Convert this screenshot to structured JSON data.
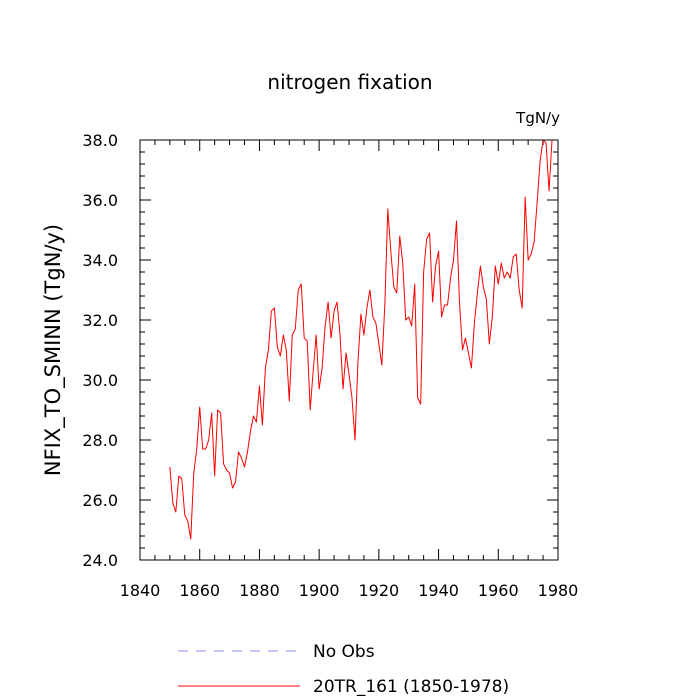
{
  "chart_data": {
    "type": "line",
    "title": "nitrogen fixation",
    "units_label": "TgN/y",
    "xlabel": "",
    "ylabel": "NFIX_TO_SMINN  (TgN/y)",
    "xlim": [
      1840,
      1980
    ],
    "ylim": [
      24.0,
      38.0
    ],
    "x_ticks": [
      1840,
      1860,
      1880,
      1900,
      1920,
      1940,
      1960,
      1980
    ],
    "x_tick_labels": [
      "1840",
      "1860",
      "1880",
      "1900",
      "1920",
      "1940",
      "1960",
      "1980"
    ],
    "y_ticks": [
      24.0,
      26.0,
      28.0,
      30.0,
      32.0,
      34.0,
      36.0,
      38.0
    ],
    "y_tick_labels": [
      "24.0",
      "26.0",
      "28.0",
      "30.0",
      "32.0",
      "34.0",
      "36.0",
      "38.0"
    ],
    "legend": {
      "position": "bottom",
      "entries": [
        {
          "label": "No Obs",
          "color": "#8c8cff",
          "style": "dashed"
        },
        {
          "label": "20TR_161 (1850-1978)",
          "color": "#ff0000",
          "style": "solid"
        }
      ]
    },
    "series": [
      {
        "name": "20TR_161 (1850-1978)",
        "color": "#ff0000",
        "x": [
          1850,
          1851,
          1852,
          1853,
          1854,
          1855,
          1856,
          1857,
          1858,
          1859,
          1860,
          1861,
          1862,
          1863,
          1864,
          1865,
          1866,
          1867,
          1868,
          1869,
          1870,
          1871,
          1872,
          1873,
          1874,
          1875,
          1876,
          1877,
          1878,
          1879,
          1880,
          1881,
          1882,
          1883,
          1884,
          1885,
          1886,
          1887,
          1888,
          1889,
          1890,
          1891,
          1892,
          1893,
          1894,
          1895,
          1896,
          1897,
          1898,
          1899,
          1900,
          1901,
          1902,
          1903,
          1904,
          1905,
          1906,
          1907,
          1908,
          1909,
          1910,
          1911,
          1912,
          1913,
          1914,
          1915,
          1916,
          1917,
          1918,
          1919,
          1920,
          1921,
          1922,
          1923,
          1924,
          1925,
          1926,
          1927,
          1928,
          1929,
          1930,
          1931,
          1932,
          1933,
          1934,
          1935,
          1936,
          1937,
          1938,
          1939,
          1940,
          1941,
          1942,
          1943,
          1944,
          1945,
          1946,
          1947,
          1948,
          1949,
          1950,
          1951,
          1952,
          1953,
          1954,
          1955,
          1956,
          1957,
          1958,
          1959,
          1960,
          1961,
          1962,
          1963,
          1964,
          1965,
          1966,
          1967,
          1968,
          1969,
          1970,
          1971,
          1972,
          1973,
          1974,
          1975,
          1976,
          1977,
          1978
        ],
        "values": [
          27.1,
          25.9,
          25.6,
          26.8,
          26.7,
          25.5,
          25.3,
          24.7,
          26.9,
          27.7,
          29.1,
          27.7,
          27.7,
          28.0,
          28.9,
          26.8,
          29.0,
          28.9,
          27.2,
          27.0,
          26.9,
          26.4,
          26.6,
          27.6,
          27.4,
          27.1,
          27.6,
          28.3,
          28.8,
          28.6,
          29.8,
          28.5,
          30.4,
          31.0,
          32.3,
          32.4,
          31.1,
          30.8,
          31.5,
          31.0,
          29.3,
          31.5,
          31.7,
          33.0,
          33.2,
          31.4,
          31.3,
          29.0,
          30.3,
          31.5,
          29.7,
          30.4,
          31.8,
          32.6,
          31.4,
          32.3,
          32.6,
          31.5,
          29.7,
          30.9,
          30.2,
          29.4,
          28.0,
          30.6,
          32.2,
          31.5,
          32.4,
          33.0,
          32.1,
          31.9,
          31.2,
          30.5,
          32.5,
          35.7,
          34.3,
          33.1,
          32.9,
          34.8,
          33.9,
          32.0,
          32.1,
          31.8,
          33.2,
          29.4,
          29.2,
          33.6,
          34.7,
          34.9,
          32.6,
          33.8,
          34.3,
          32.1,
          32.5,
          32.5,
          33.4,
          34.0,
          35.3,
          32.6,
          31.0,
          31.4,
          30.9,
          30.4,
          31.9,
          32.9,
          33.8,
          33.1,
          32.7,
          31.2,
          32.1,
          33.8,
          33.2,
          33.9,
          33.4,
          33.6,
          33.4,
          34.1,
          34.2,
          33.0,
          32.4,
          36.1,
          34.0,
          34.2,
          34.6,
          35.9,
          37.3,
          38.0,
          37.9,
          36.3,
          38.0
        ]
      }
    ]
  }
}
